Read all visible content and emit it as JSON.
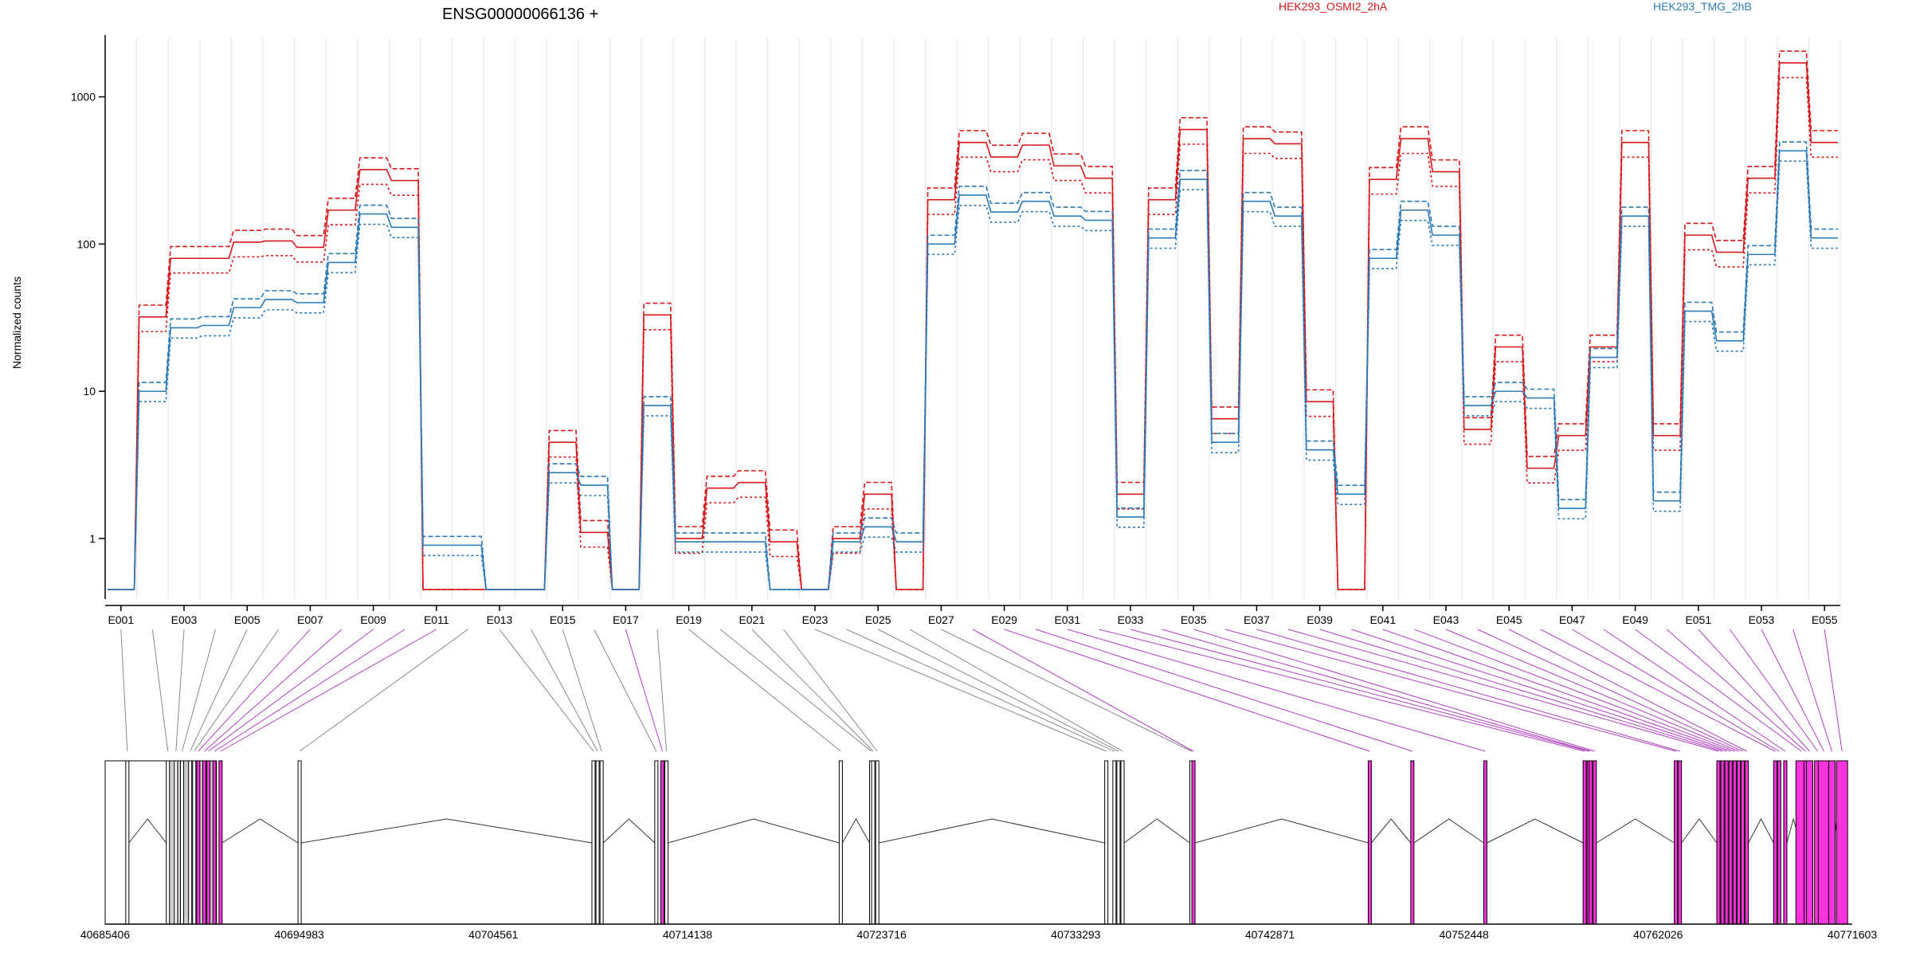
{
  "chart_data": {
    "type": "line",
    "title": "ENSG00000066136 +",
    "ylabel": "Normalized counts",
    "y_scale": "log",
    "ylim": [
      0.45,
      2500
    ],
    "yticks": [
      1,
      10,
      100,
      1000
    ],
    "ytick_labels": [
      "1",
      "10",
      "100",
      "1000"
    ],
    "grid": "vertical lines at exon boundaries",
    "legend": [
      {
        "name": "HEK293_OSMI2_2hA",
        "color": "#d7191c",
        "placement": "top"
      },
      {
        "name": "HEK293_TMG_2hB",
        "color": "#2c7bb6",
        "placement": "top-right"
      }
    ],
    "exons": [
      "E001",
      "E002",
      "E003",
      "E004",
      "E005",
      "E006",
      "E007",
      "E008",
      "E009",
      "E010",
      "E011",
      "E012",
      "E013",
      "E014",
      "E015",
      "E016",
      "E017",
      "E018",
      "E019",
      "E020",
      "E021",
      "E022",
      "E023",
      "E024",
      "E025",
      "E026",
      "E027",
      "E028",
      "E029",
      "E030",
      "E031",
      "E032",
      "E033",
      "E034",
      "E035",
      "E036",
      "E037",
      "E038",
      "E039",
      "E040",
      "E041",
      "E042",
      "E043",
      "E044",
      "E045",
      "E046",
      "E047",
      "E048",
      "E049",
      "E050",
      "E051",
      "E052",
      "E053",
      "E054",
      "E055"
    ],
    "xtick_labels": [
      "E001",
      "E003",
      "E005",
      "E007",
      "E009",
      "E011",
      "E013",
      "E015",
      "E017",
      "E019",
      "E021",
      "E023",
      "E025",
      "E027",
      "E029",
      "E031",
      "E033",
      "E035",
      "E037",
      "E039",
      "E041",
      "E043",
      "E045",
      "E047",
      "E049",
      "E051",
      "E053",
      "E055"
    ],
    "series": [
      {
        "name": "HEK293_OSMI2_2hA",
        "values": [
          0.45,
          32,
          80,
          80,
          103,
          105,
          95,
          170,
          320,
          270,
          0.45,
          0.45,
          0.45,
          0.45,
          4.5,
          1.1,
          0.45,
          33,
          1.0,
          2.2,
          2.4,
          0.95,
          0.45,
          1.0,
          2.0,
          0.45,
          200,
          490,
          390,
          470,
          340,
          280,
          2.0,
          200,
          600,
          6.5,
          520,
          480,
          8.5,
          0.45,
          275,
          520,
          310,
          5.5,
          20,
          3.0,
          5.0,
          20,
          490,
          5.0,
          115,
          88,
          280,
          1700,
          490
        ]
      },
      {
        "name": "HEK293_TMG_2hB",
        "values": [
          0.45,
          10,
          27,
          28,
          37,
          42,
          40,
          75,
          160,
          130,
          0.9,
          0.9,
          0.45,
          0.45,
          2.8,
          2.3,
          0.45,
          8.0,
          0.95,
          0.95,
          0.95,
          0.45,
          0.45,
          0.95,
          1.2,
          0.95,
          100,
          215,
          165,
          195,
          155,
          145,
          1.4,
          110,
          275,
          4.5,
          195,
          155,
          4.0,
          2.0,
          80,
          170,
          115,
          8.0,
          10,
          9.0,
          1.6,
          17,
          155,
          1.8,
          35,
          22,
          85,
          430,
          110
        ]
      }
    ],
    "genome_axis": {
      "labels": [
        "40685406",
        "40694983",
        "40704561",
        "40714138",
        "40723716",
        "40733293",
        "40742871",
        "40752448",
        "40762026",
        "40771603"
      ],
      "range": [
        40685406,
        40771603
      ]
    }
  }
}
